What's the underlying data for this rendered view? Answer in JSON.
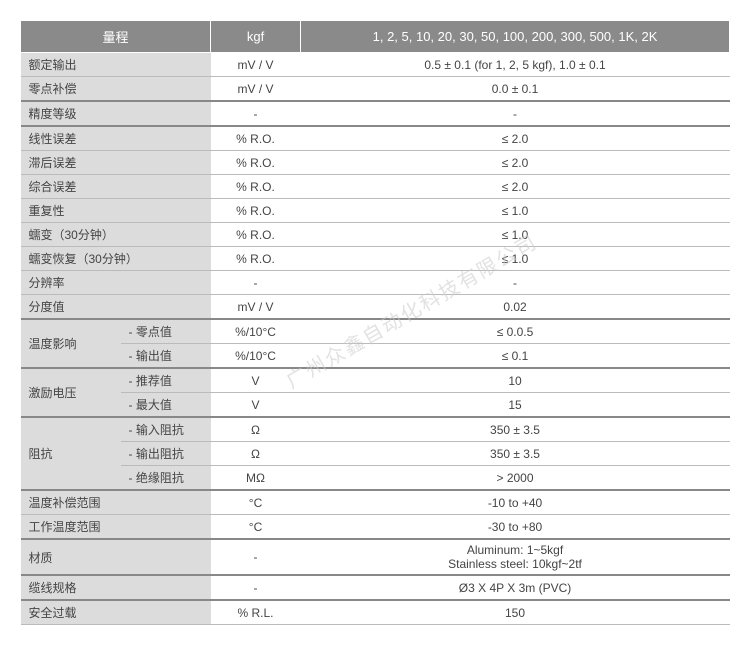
{
  "header": {
    "c1": "量程",
    "c2": "kgf",
    "c3": "1, 2, 5, 10, 20, 30, 50, 100, 200, 300, 500, 1K, 2K"
  },
  "watermark": "广州众鑫自动化科技有限公司",
  "rows": [
    {
      "label1": "额定输出",
      "label2": "",
      "unit": "mV / V",
      "value": "0.5 ± 0.1 (for 1, 2, 5 kgf), 1.0 ± 0.1",
      "span": true
    },
    {
      "label1": "零点补偿",
      "label2": "",
      "unit": "mV / V",
      "value": "0.0 ± 0.1",
      "span": true
    },
    {
      "label1": "精度等级",
      "label2": "",
      "unit": "-",
      "value": "-",
      "span": true,
      "topline": true
    },
    {
      "label1": "线性误差",
      "label2": "",
      "unit": "% R.O.",
      "value": "≤ 2.0",
      "span": true,
      "topline": true
    },
    {
      "label1": "滞后误差",
      "label2": "",
      "unit": "% R.O.",
      "value": "≤ 2.0",
      "span": true
    },
    {
      "label1": "综合误差",
      "label2": "",
      "unit": "% R.O.",
      "value": "≤ 2.0",
      "span": true
    },
    {
      "label1": "重复性",
      "label2": "",
      "unit": "% R.O.",
      "value": "≤ 1.0",
      "span": true
    },
    {
      "label1": "蠕变（30分钟）",
      "label2": "",
      "unit": "% R.O.",
      "value": "≤ 1.0",
      "span": true
    },
    {
      "label1": "蠕变恢复（30分钟）",
      "label2": "",
      "unit": "% R.O.",
      "value": "≤ 1.0",
      "span": true
    },
    {
      "label1": "分辨率",
      "label2": "",
      "unit": "-",
      "value": "-",
      "span": true
    },
    {
      "label1": "分度值",
      "label2": "",
      "unit": "mV / V",
      "value": "0.02",
      "span": true
    },
    {
      "group": "温度影响",
      "gspan": 2,
      "label2": "- 零点值",
      "unit": "%/10°C",
      "value": "≤ 0.0.5",
      "topline": true
    },
    {
      "label2": "- 输出值",
      "unit": "%/10°C",
      "value": "≤ 0.1"
    },
    {
      "group": "激励电压",
      "gspan": 2,
      "label2": "- 推荐值",
      "unit": "V",
      "value": "10",
      "topline": true
    },
    {
      "label2": "- 最大值",
      "unit": "V",
      "value": "15"
    },
    {
      "group": "阻抗",
      "gspan": 3,
      "label2": "- 输入阻抗",
      "unit": "Ω",
      "value": "350 ± 3.5",
      "topline": true
    },
    {
      "label2": "- 输出阻抗",
      "unit": "Ω",
      "value": "350 ± 3.5"
    },
    {
      "label2": "- 绝缘阻抗",
      "unit": "MΩ",
      "value": "> 2000"
    },
    {
      "label1": "温度补偿范围",
      "label2": "",
      "unit": "°C",
      "value": "-10 to +40",
      "span": true,
      "topline": true
    },
    {
      "label1": "工作温度范围",
      "label2": "",
      "unit": "°C",
      "value": "-30 to +80",
      "span": true
    },
    {
      "label1": "材质",
      "label2": "",
      "unit": "-",
      "value": "Aluminum: 1~5kgf\nStainless steel: 10kgf~2tf",
      "span": true,
      "topline": true,
      "multi": true
    },
    {
      "label1": "缆线规格",
      "label2": "",
      "unit": "-",
      "value": "Ø3 X 4P X 3m (PVC)",
      "span": true,
      "topline": true
    },
    {
      "label1": "安全过载",
      "label2": "",
      "unit": "% R.L.",
      "value": "150",
      "span": true,
      "topline": true
    }
  ],
  "style": {
    "header_bg": "#8a8a8a",
    "label_bg": "#dcdcdc",
    "border": "#bbb",
    "strong_border": "#888"
  }
}
